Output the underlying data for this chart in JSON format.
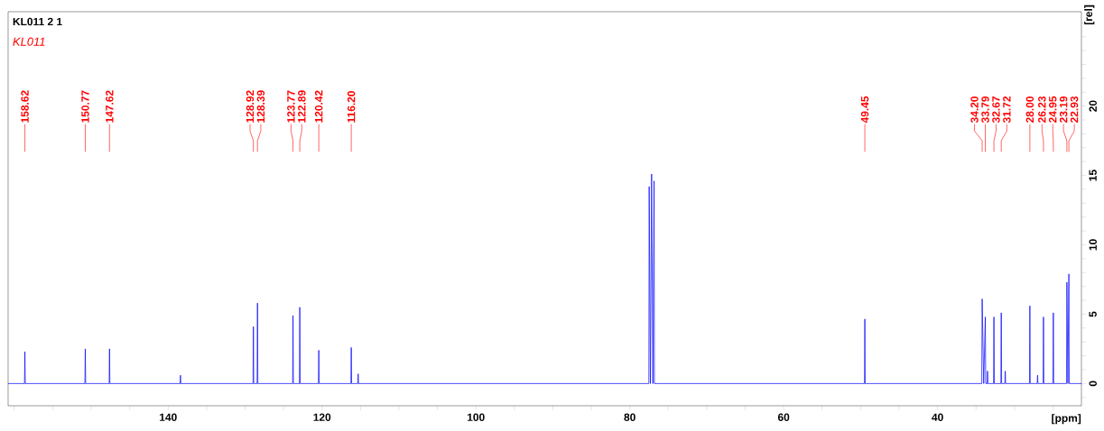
{
  "chart_data": {
    "type": "line",
    "title": "KL011  2  1",
    "subtitle": "KL011",
    "xlabel": "[ppm]",
    "ylabel": "[rel]",
    "xlim": [
      160.8,
      21.3
    ],
    "ylim": [
      -1.6,
      26.8
    ],
    "xticks": [
      {
        "value": 160,
        "label": null
      },
      {
        "value": 155,
        "label": null
      },
      {
        "value": 150,
        "label": null
      },
      {
        "value": 145,
        "label": null
      },
      140,
      {
        "value": 135,
        "label": null
      },
      {
        "value": 130,
        "label": null
      },
      {
        "value": 125,
        "label": null
      },
      120,
      {
        "value": 115,
        "label": null
      },
      {
        "value": 110,
        "label": null
      },
      {
        "value": 105,
        "label": null
      },
      100,
      {
        "value": 95,
        "label": null
      },
      {
        "value": 90,
        "label": null
      },
      {
        "value": 85,
        "label": null
      },
      80,
      {
        "value": 75,
        "label": null
      },
      {
        "value": 70,
        "label": null
      },
      {
        "value": 65,
        "label": null
      },
      60,
      {
        "value": 55,
        "label": null
      },
      {
        "value": 50,
        "label": null
      },
      {
        "value": 45,
        "label": null
      },
      40,
      {
        "value": 35,
        "label": null
      },
      {
        "value": 30,
        "label": null
      },
      {
        "value": 25,
        "label": null
      }
    ],
    "yticks": [
      {
        "value": -1,
        "label": null
      },
      0,
      {
        "value": 1,
        "label": null
      },
      {
        "value": 2,
        "label": null
      },
      {
        "value": 3,
        "label": null
      },
      {
        "value": 4,
        "label": null
      },
      5,
      {
        "value": 6,
        "label": null
      },
      {
        "value": 7,
        "label": null
      },
      {
        "value": 8,
        "label": null
      },
      {
        "value": 9,
        "label": null
      },
      10,
      {
        "value": 11,
        "label": null
      },
      {
        "value": 12,
        "label": null
      },
      {
        "value": 13,
        "label": null
      },
      {
        "value": 14,
        "label": null
      },
      15,
      {
        "value": 16,
        "label": null
      },
      {
        "value": 17,
        "label": null
      },
      {
        "value": 18,
        "label": null
      },
      {
        "value": 19,
        "label": null
      },
      20,
      {
        "value": 21,
        "label": null
      },
      {
        "value": 22,
        "label": null
      },
      {
        "value": 23,
        "label": null
      },
      {
        "value": 24,
        "label": null
      },
      {
        "value": 25,
        "label": null
      },
      {
        "value": 26,
        "label": null
      }
    ],
    "series": [
      {
        "color": "#0000ff",
        "x": [
          160.8,
          158.67,
          158.62,
          158.57,
          150.82,
          150.77,
          150.72,
          147.67,
          147.62,
          147.57,
          138.45,
          138.4,
          138.35,
          128.97,
          128.92,
          128.87,
          128.44,
          128.39,
          128.34,
          123.82,
          123.77,
          123.72,
          122.94,
          122.89,
          122.84,
          120.47,
          120.42,
          120.37,
          116.25,
          116.2,
          116.15,
          115.35,
          115.3,
          115.25,
          77.52,
          77.48,
          77.32,
          77.16,
          77.0,
          76.84,
          76.8,
          49.5,
          49.45,
          49.4,
          34.25,
          34.2,
          34.0,
          33.79,
          33.74,
          33.55,
          33.5,
          33.45,
          32.72,
          32.67,
          32.62,
          31.77,
          31.72,
          31.67,
          31.25,
          31.2,
          31.15,
          28.05,
          28.0,
          27.95,
          27.05,
          27.0,
          26.95,
          26.28,
          26.23,
          26.18,
          25.0,
          24.95,
          24.9,
          23.24,
          23.19,
          23.06,
          22.93,
          22.88,
          21.3
        ],
        "values": [
          0,
          0,
          2.3,
          0,
          0,
          2.5,
          0,
          0,
          2.5,
          0,
          0,
          0.6,
          0,
          0,
          4.1,
          0,
          0,
          5.8,
          0,
          0,
          4.9,
          0,
          0,
          5.5,
          0,
          0,
          2.4,
          0,
          0,
          2.6,
          0,
          0,
          0.7,
          0,
          0,
          14.2,
          0,
          15.1,
          0,
          14.6,
          0,
          0,
          4.65,
          0,
          0,
          6.1,
          0,
          4.8,
          0,
          0,
          0.9,
          0,
          0,
          4.8,
          0,
          0,
          5.1,
          0,
          0,
          0.9,
          0,
          0,
          5.6,
          0,
          0,
          0.6,
          0,
          0,
          4.8,
          0,
          0,
          5.1,
          0,
          0,
          7.3,
          0,
          7.9,
          0,
          0
        ]
      }
    ],
    "annotations": [
      {
        "text": "158.62",
        "x": 158.62
      },
      {
        "text": "150.77",
        "x": 150.77
      },
      {
        "text": "147.62",
        "x": 147.62
      },
      {
        "text": "128.92",
        "x": 128.92
      },
      {
        "text": "128.39",
        "x": 128.39
      },
      {
        "text": "123.77",
        "x": 123.77
      },
      {
        "text": "122.89",
        "x": 122.89
      },
      {
        "text": "120.42",
        "x": 120.42
      },
      {
        "text": "116.20",
        "x": 116.2
      },
      {
        "text": "49.45",
        "x": 49.45
      },
      {
        "text": "34.20",
        "x": 34.2
      },
      {
        "text": "33.79",
        "x": 33.79
      },
      {
        "text": "32.67",
        "x": 32.67
      },
      {
        "text": "31.72",
        "x": 31.72
      },
      {
        "text": "28.00",
        "x": 28.0
      },
      {
        "text": "26.23",
        "x": 26.23
      },
      {
        "text": "24.95",
        "x": 24.95
      },
      {
        "text": "23.19",
        "x": 23.19
      },
      {
        "text": "22.93",
        "x": 22.93
      }
    ]
  }
}
